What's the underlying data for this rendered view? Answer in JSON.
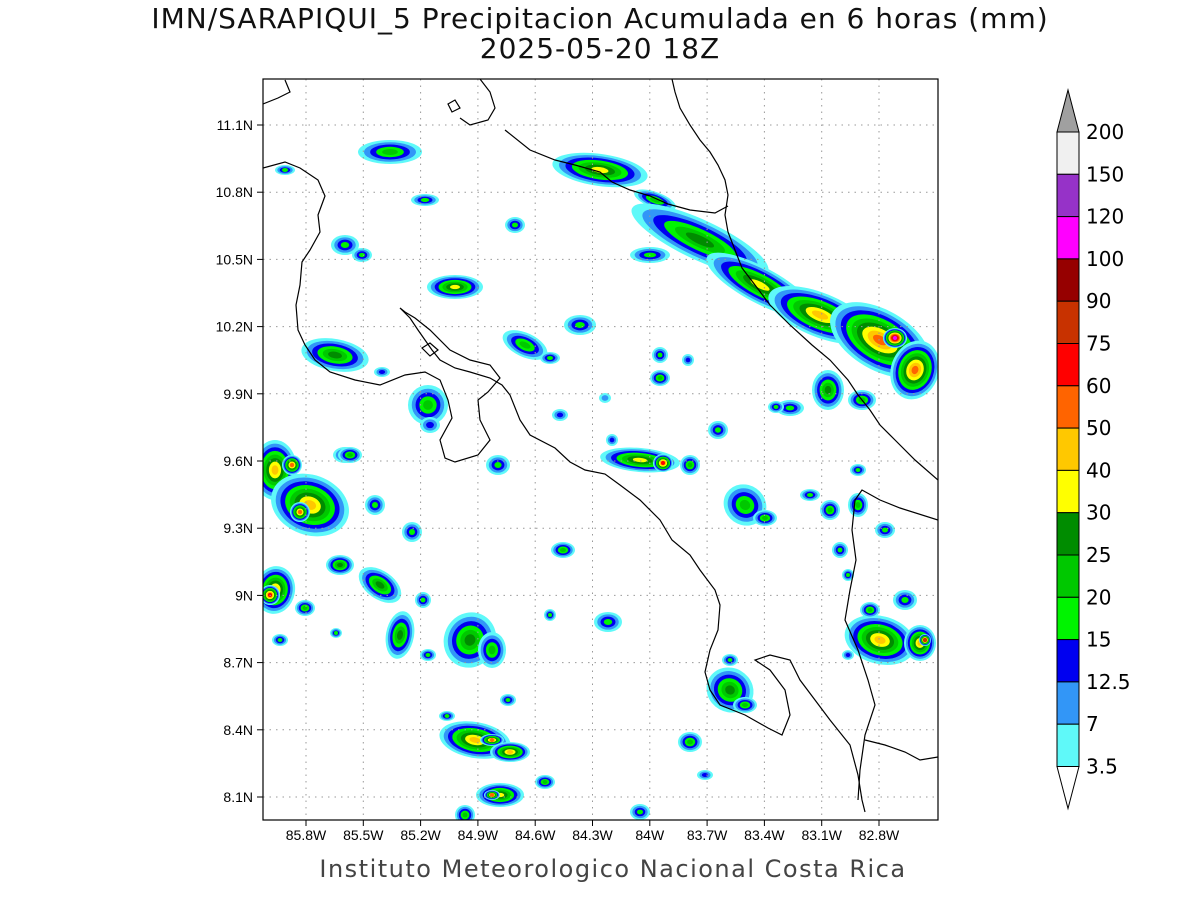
{
  "title": {
    "line1": "IMN/SARAPIQUI_5 Precipitacion Acumulada en 6 horas (mm)",
    "line2": "2025-05-20 18Z"
  },
  "footer": "Instituto Meteorologico Nacional Costa Rica",
  "map": {
    "lat_ticks": [
      "11.1N",
      "10.8N",
      "10.5N",
      "10.2N",
      "9.9N",
      "9.6N",
      "9.3N",
      "9N",
      "8.7N",
      "8.4N",
      "8.1N"
    ],
    "lon_ticks": [
      "85.8W",
      "85.5W",
      "85.2W",
      "84.9W",
      "84.6W",
      "84.3W",
      "84W",
      "83.7W",
      "83.4W",
      "83.1W",
      "82.8W"
    ]
  },
  "colorbar": {
    "levels": [
      "3.5",
      "7",
      "12.5",
      "15",
      "20",
      "25",
      "30",
      "40",
      "50",
      "60",
      "75",
      "90",
      "100",
      "120",
      "150",
      "200"
    ],
    "colors": [
      "#5ff9f9",
      "#3296f7",
      "#0000f0",
      "#00f400",
      "#00c800",
      "#008c00",
      "#ffff00",
      "#ffc800",
      "#ff6400",
      "#ff0000",
      "#c83200",
      "#960000",
      "#ff00ff",
      "#9632c8",
      "#f0f0f0"
    ],
    "over_color": "#a0a0a0",
    "under_color": "#ffffff"
  }
}
